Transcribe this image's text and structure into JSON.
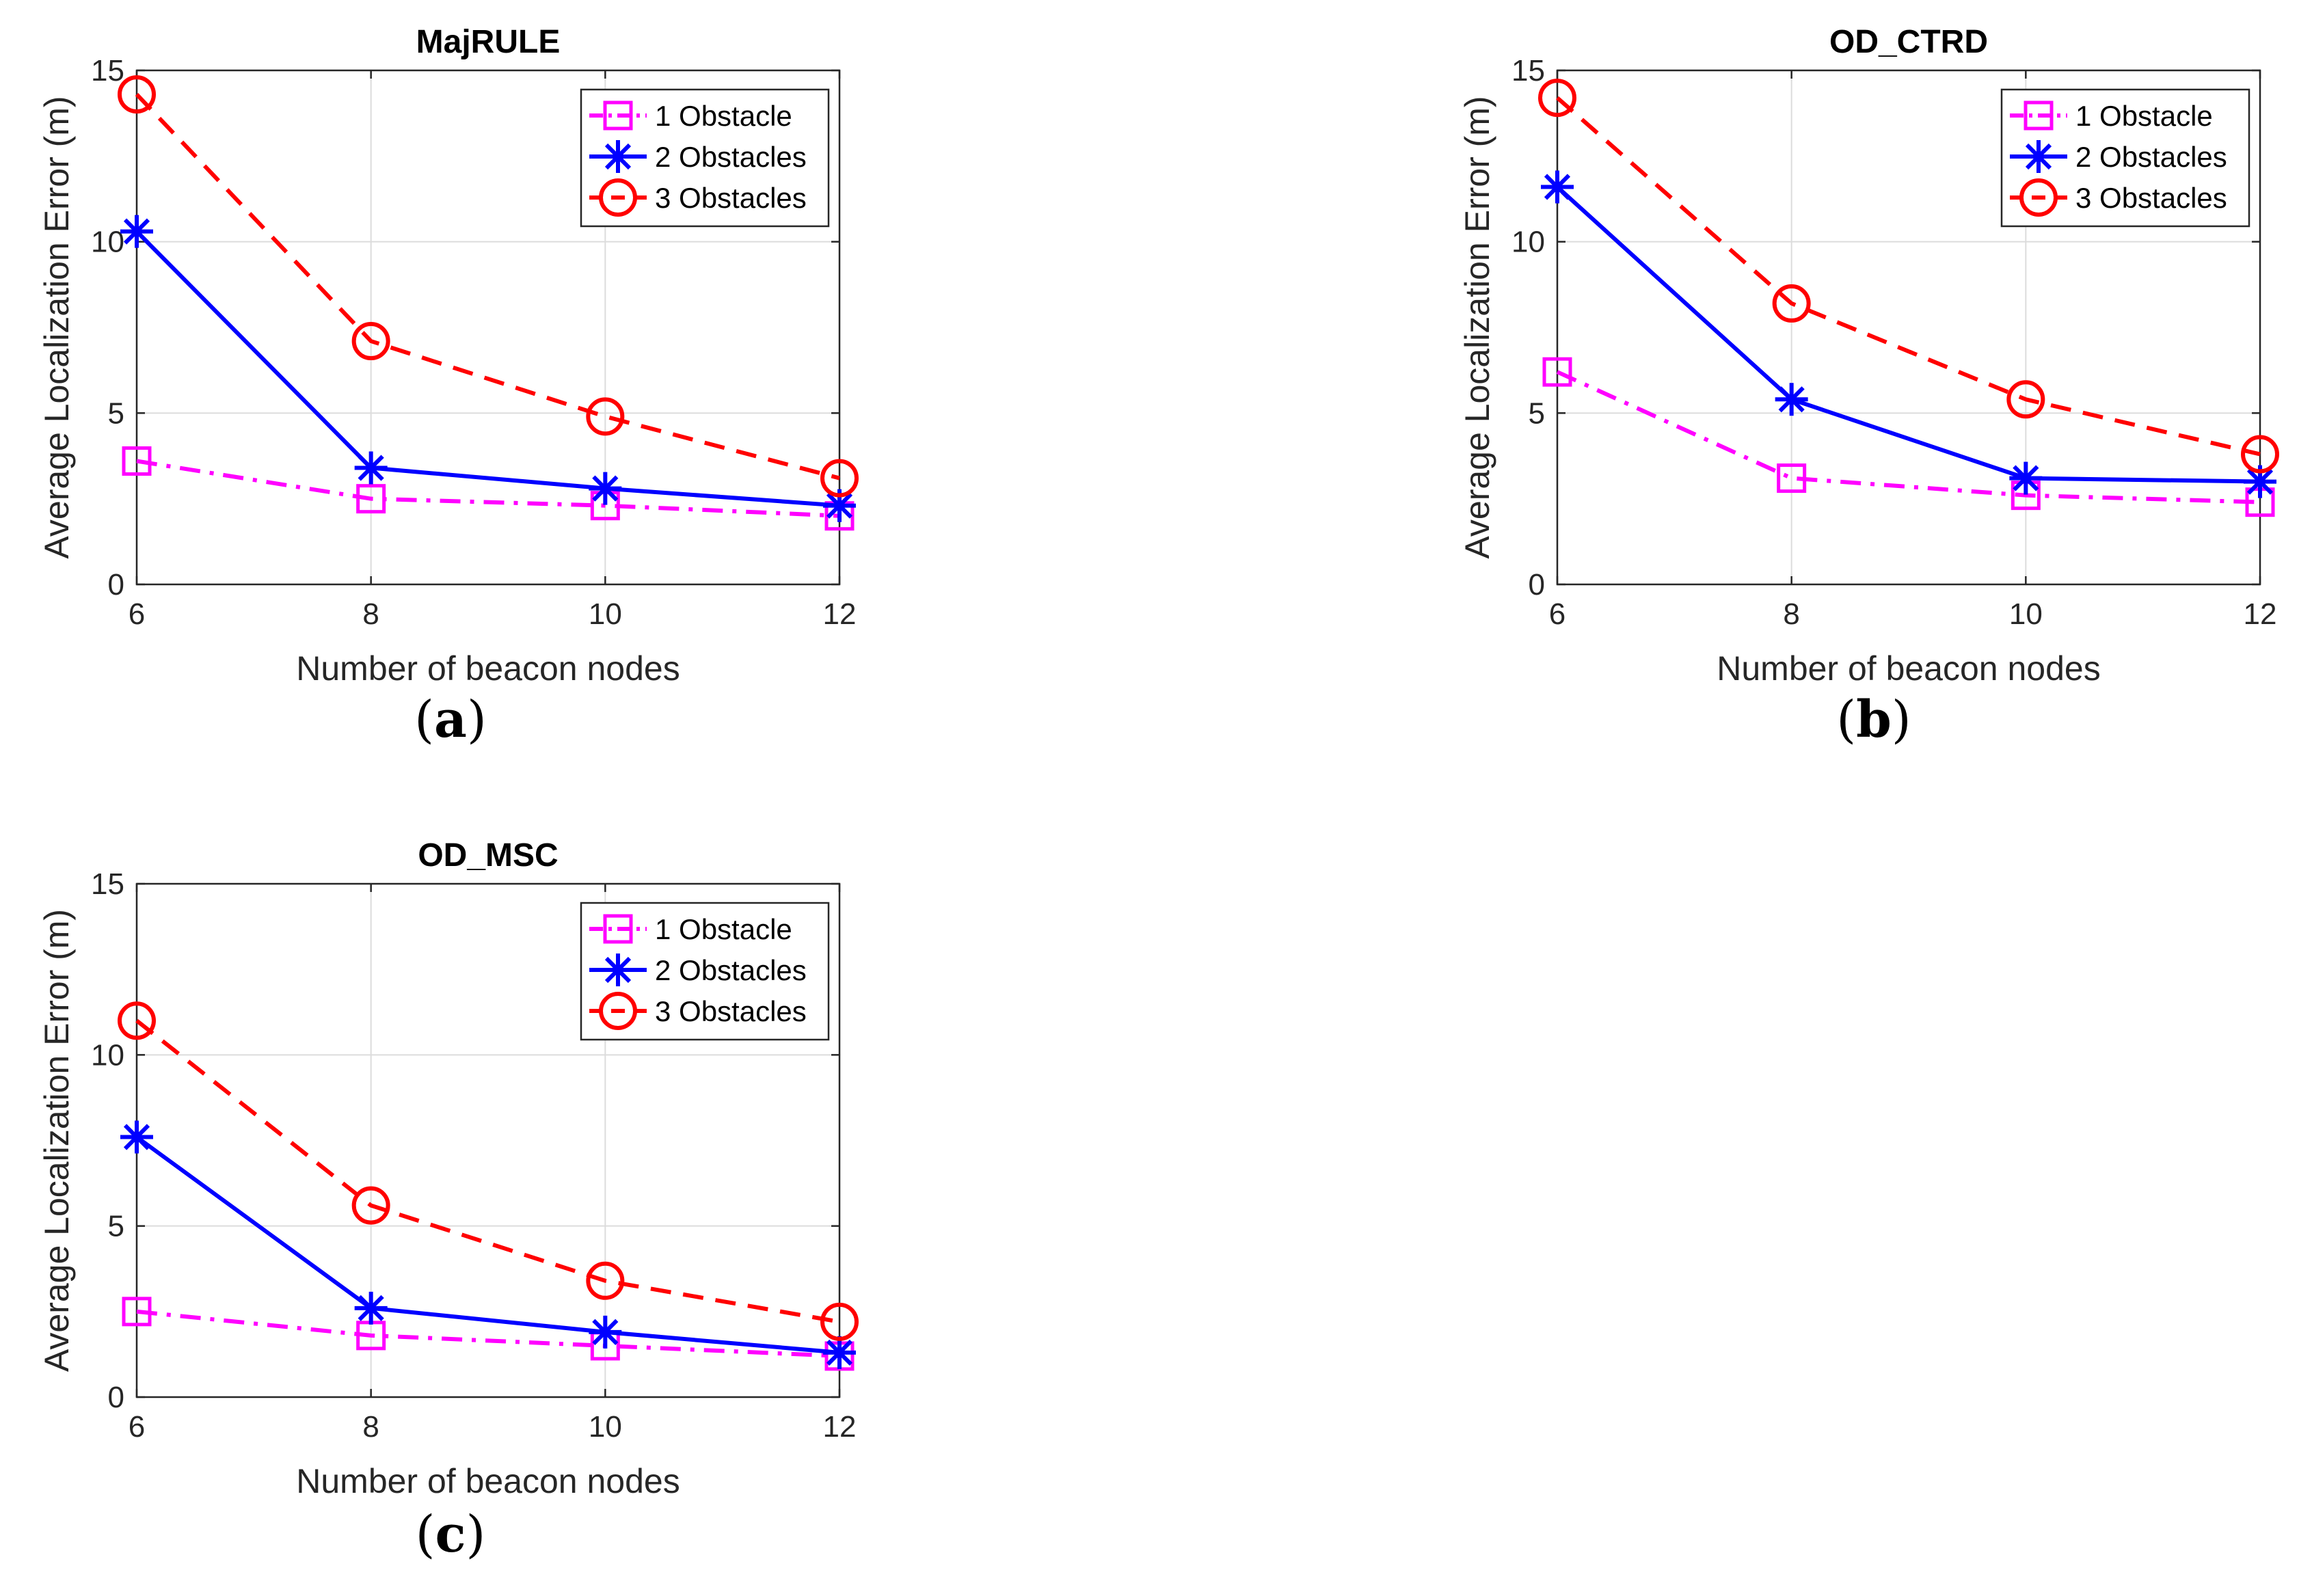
{
  "figure": {
    "panel_labels": [
      "(a)",
      "(b)",
      "(c)"
    ]
  },
  "chart_data": [
    {
      "type": "line",
      "title": "MajRULE",
      "xlabel": "Number of beacon nodes",
      "ylabel": "Average Localization Error (m)",
      "x": [
        6,
        8,
        10,
        12
      ],
      "xlim": [
        6,
        12
      ],
      "ylim": [
        0,
        15
      ],
      "xticks": [
        6,
        8,
        10,
        12
      ],
      "yticks": [
        0,
        5,
        10,
        15
      ],
      "grid": true,
      "legend_position": "top-right",
      "series": [
        {
          "name": "1 Obstacle",
          "values": [
            3.6,
            2.5,
            2.3,
            2.0
          ],
          "color": "#ff00ff",
          "dash": "dashdot",
          "marker": "square"
        },
        {
          "name": "2 Obstacles",
          "values": [
            10.3,
            3.4,
            2.8,
            2.3
          ],
          "color": "#0000ff",
          "dash": "solid",
          "marker": "asterisk"
        },
        {
          "name": "3 Obstacles",
          "values": [
            14.3,
            7.1,
            4.9,
            3.1
          ],
          "color": "#ff0000",
          "dash": "dashed",
          "marker": "circle"
        }
      ]
    },
    {
      "type": "line",
      "title": "OD_CTRD",
      "xlabel": "Number of beacon nodes",
      "ylabel": "Average Localization Error (m)",
      "x": [
        6,
        8,
        10,
        12
      ],
      "xlim": [
        6,
        12
      ],
      "ylim": [
        0,
        15
      ],
      "xticks": [
        6,
        8,
        10,
        12
      ],
      "yticks": [
        0,
        5,
        10,
        15
      ],
      "grid": true,
      "legend_position": "top-right",
      "series": [
        {
          "name": "1 Obstacle",
          "values": [
            6.2,
            3.1,
            2.6,
            2.4
          ],
          "color": "#ff00ff",
          "dash": "dashdot",
          "marker": "square"
        },
        {
          "name": "2 Obstacles",
          "values": [
            11.6,
            5.4,
            3.1,
            3.0
          ],
          "color": "#0000ff",
          "dash": "solid",
          "marker": "asterisk"
        },
        {
          "name": "3 Obstacles",
          "values": [
            14.2,
            8.2,
            5.4,
            3.8
          ],
          "color": "#ff0000",
          "dash": "dashed",
          "marker": "circle"
        }
      ]
    },
    {
      "type": "line",
      "title": "OD_MSC",
      "xlabel": "Number of beacon nodes",
      "ylabel": "Average Localization Error (m)",
      "x": [
        6,
        8,
        10,
        12
      ],
      "xlim": [
        6,
        12
      ],
      "ylim": [
        0,
        15
      ],
      "xticks": [
        6,
        8,
        10,
        12
      ],
      "yticks": [
        0,
        5,
        10,
        15
      ],
      "grid": true,
      "legend_position": "top-right",
      "series": [
        {
          "name": "1 Obstacle",
          "values": [
            2.5,
            1.8,
            1.5,
            1.2
          ],
          "color": "#ff00ff",
          "dash": "dashdot",
          "marker": "square"
        },
        {
          "name": "2 Obstacles",
          "values": [
            7.6,
            2.6,
            1.9,
            1.3
          ],
          "color": "#0000ff",
          "dash": "solid",
          "marker": "asterisk"
        },
        {
          "name": "3 Obstacles",
          "values": [
            11.0,
            5.6,
            3.4,
            2.2
          ],
          "color": "#ff0000",
          "dash": "dashed",
          "marker": "circle"
        }
      ]
    }
  ]
}
